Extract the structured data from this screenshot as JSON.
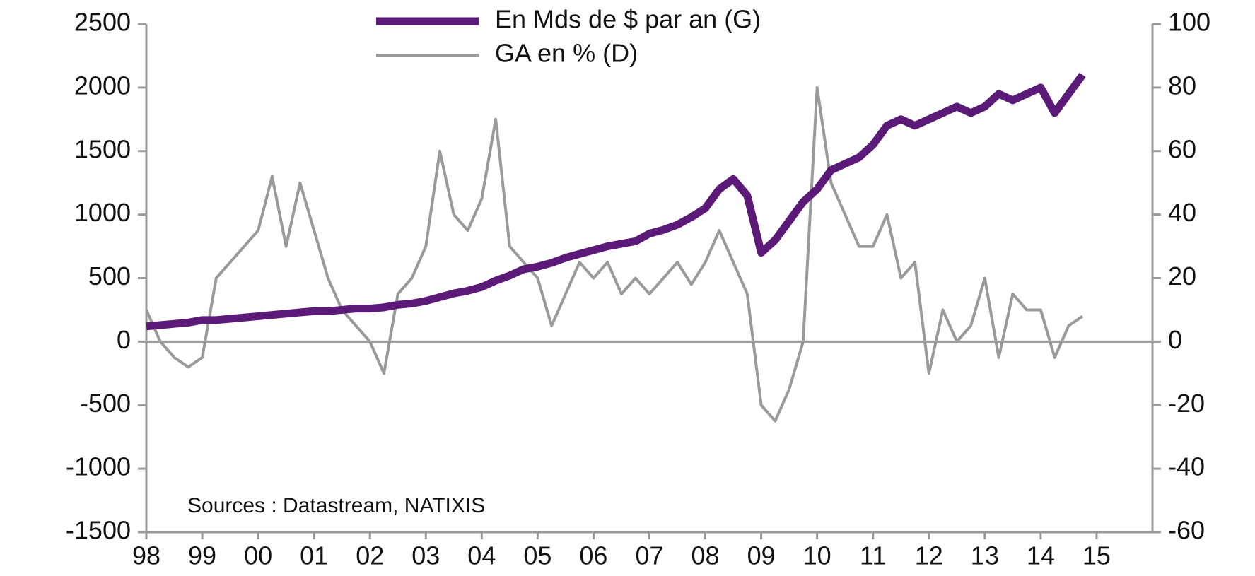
{
  "chart_data": {
    "type": "line",
    "annotation": "Sources : Datastream, NATIXIS",
    "x": [
      1998,
      1998.25,
      1998.5,
      1998.75,
      1999,
      1999.25,
      1999.5,
      1999.75,
      2000,
      2000.25,
      2000.5,
      2000.75,
      2001,
      2001.25,
      2001.5,
      2001.75,
      2002,
      2002.25,
      2002.5,
      2002.75,
      2003,
      2003.25,
      2003.5,
      2003.75,
      2004,
      2004.25,
      2004.5,
      2004.75,
      2005,
      2005.25,
      2005.5,
      2005.75,
      2006,
      2006.25,
      2006.5,
      2006.75,
      2007,
      2007.25,
      2007.5,
      2007.75,
      2008,
      2008.25,
      2008.5,
      2008.75,
      2009,
      2009.25,
      2009.5,
      2009.75,
      2010,
      2010.25,
      2010.5,
      2010.75,
      2011,
      2011.25,
      2011.5,
      2011.75,
      2012,
      2012.25,
      2012.5,
      2012.75,
      2013,
      2013.25,
      2013.5,
      2013.75,
      2014,
      2014.25,
      2014.5,
      2014.75
    ],
    "series": [
      {
        "name": "En Mds de $ par an (G)",
        "color": "#5b1a78",
        "axis": "y",
        "values": [
          120,
          130,
          140,
          150,
          170,
          170,
          180,
          190,
          200,
          210,
          220,
          230,
          240,
          240,
          250,
          260,
          260,
          270,
          290,
          300,
          320,
          350,
          380,
          400,
          430,
          480,
          520,
          570,
          590,
          620,
          660,
          690,
          720,
          750,
          770,
          790,
          850,
          880,
          920,
          980,
          1050,
          1200,
          1280,
          1150,
          700,
          800,
          950,
          1100,
          1200,
          1350,
          1400,
          1450,
          1550,
          1700,
          1750,
          1700,
          1750,
          1800,
          1850,
          1800,
          1850,
          1950,
          1900,
          1950,
          2000,
          1800,
          1950,
          2100
        ]
      },
      {
        "name": "GA en % (D)",
        "color": "#9a9a9a",
        "axis": "y2",
        "values": [
          10,
          0,
          -5,
          -8,
          -5,
          20,
          25,
          30,
          35,
          52,
          30,
          50,
          35,
          20,
          10,
          5,
          0,
          -10,
          15,
          20,
          30,
          60,
          40,
          35,
          45,
          70,
          30,
          25,
          20,
          5,
          15,
          25,
          20,
          25,
          15,
          20,
          15,
          20,
          25,
          18,
          25,
          35,
          25,
          15,
          -20,
          -25,
          -15,
          0,
          80,
          50,
          40,
          30,
          30,
          40,
          20,
          25,
          -10,
          10,
          0,
          5,
          20,
          -5,
          15,
          10,
          10,
          -5,
          5,
          8
        ]
      }
    ],
    "xlim": [
      1998,
      2016
    ],
    "xticks": [
      {
        "value": 1998,
        "label": "98"
      },
      {
        "value": 1999,
        "label": "99"
      },
      {
        "value": 2000,
        "label": "00"
      },
      {
        "value": 2001,
        "label": "01"
      },
      {
        "value": 2002,
        "label": "02"
      },
      {
        "value": 2003,
        "label": "03"
      },
      {
        "value": 2004,
        "label": "04"
      },
      {
        "value": 2005,
        "label": "05"
      },
      {
        "value": 2006,
        "label": "06"
      },
      {
        "value": 2007,
        "label": "07"
      },
      {
        "value": 2008,
        "label": "08"
      },
      {
        "value": 2009,
        "label": "09"
      },
      {
        "value": 2010,
        "label": "10"
      },
      {
        "value": 2011,
        "label": "11"
      },
      {
        "value": 2012,
        "label": "12"
      },
      {
        "value": 2013,
        "label": "13"
      },
      {
        "value": 2014,
        "label": "14"
      },
      {
        "value": 2015,
        "label": "15"
      }
    ],
    "ylim": [
      -1500,
      2500
    ],
    "yticks": [
      -1500,
      -1000,
      -500,
      0,
      500,
      1000,
      1500,
      2000,
      2500
    ],
    "y2lim": [
      -60,
      100
    ],
    "y2ticks": [
      -60,
      -40,
      -20,
      0,
      20,
      40,
      60,
      80,
      100
    ],
    "legend": "top"
  }
}
